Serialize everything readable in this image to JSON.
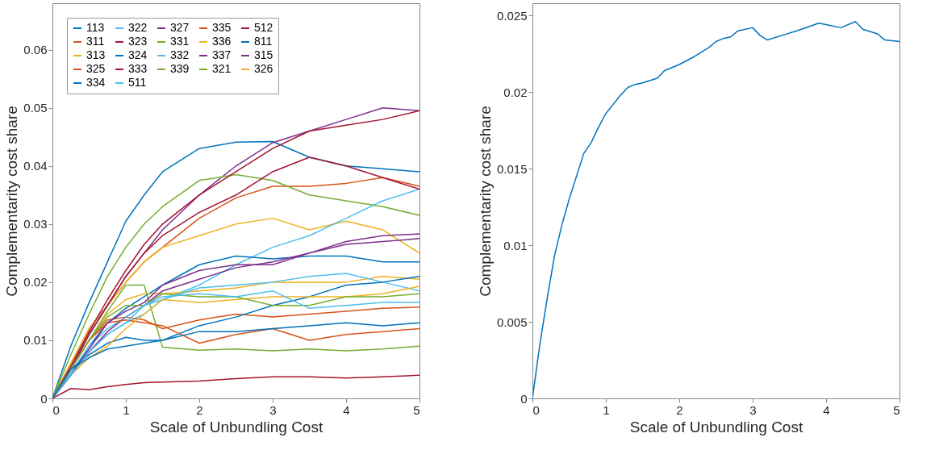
{
  "chart_data": [
    {
      "type": "line",
      "xlabel": "Scale of Unbundling Cost",
      "ylabel": "Complementarity cost share",
      "xlim": [
        0,
        5
      ],
      "xticks": [
        0,
        1,
        2,
        3,
        4,
        5
      ],
      "ylim": [
        0,
        0.068
      ],
      "yticks": [
        0,
        0.01,
        0.02,
        0.03,
        0.04,
        0.05,
        0.06
      ],
      "grid": false,
      "legend": "top left",
      "line_style": "solid",
      "marker": "none",
      "x": [
        0,
        0.25,
        0.5,
        0.75,
        1,
        1.25,
        1.5,
        2,
        2.5,
        3,
        3.5,
        4,
        4.5,
        5
      ],
      "series": [
        {
          "name": "113",
          "color": "#0072bd",
          "values": [
            0,
            0.009,
            0.0165,
            0.0235,
            0.0305,
            0.035,
            0.039,
            0.043,
            0.0441,
            0.0442,
            0.0415,
            0.04,
            0.0395,
            0.039
          ]
        },
        {
          "name": "311",
          "color": "#d95319",
          "values": [
            0,
            0.006,
            0.012,
            0.016,
            0.02,
            0.0235,
            0.026,
            0.031,
            0.0345,
            0.0365,
            0.0365,
            0.037,
            0.038,
            0.0365
          ]
        },
        {
          "name": "313",
          "color": "#edb120",
          "values": [
            0,
            0.006,
            0.012,
            0.016,
            0.02,
            0.0235,
            0.026,
            0.028,
            0.03,
            0.031,
            0.029,
            0.0305,
            0.029,
            0.025
          ]
        },
        {
          "name": "315",
          "color": "#7e2f8e",
          "values": [
            0,
            0.005,
            0.011,
            0.016,
            0.021,
            0.025,
            0.029,
            0.035,
            0.04,
            0.044,
            0.046,
            0.048,
            0.05,
            0.0495
          ]
        },
        {
          "name": "321",
          "color": "#77ac30",
          "values": [
            0,
            0.0075,
            0.0145,
            0.021,
            0.026,
            0.03,
            0.033,
            0.0375,
            0.0385,
            0.0375,
            0.035,
            0.034,
            0.033,
            0.0315
          ]
        },
        {
          "name": "322",
          "color": "#4dbeee",
          "values": [
            0,
            0.004,
            0.008,
            0.011,
            0.013,
            0.0145,
            0.017,
            0.0195,
            0.023,
            0.026,
            0.028,
            0.031,
            0.034,
            0.036
          ]
        },
        {
          "name": "323",
          "color": "#a2142f",
          "values": [
            0,
            0.0055,
            0.0115,
            0.017,
            0.022,
            0.0265,
            0.03,
            0.035,
            0.039,
            0.043,
            0.046,
            0.047,
            0.048,
            0.0495
          ]
        },
        {
          "name": "324",
          "color": "#0072bd",
          "values": [
            0,
            0.004,
            0.009,
            0.013,
            0.0155,
            0.0175,
            0.0195,
            0.023,
            0.0245,
            0.024,
            0.0245,
            0.0245,
            0.0235,
            0.0235
          ]
        },
        {
          "name": "325",
          "color": "#d95319",
          "values": [
            0,
            0.005,
            0.01,
            0.0135,
            0.014,
            0.0135,
            0.012,
            0.0135,
            0.0145,
            0.014,
            0.0145,
            0.015,
            0.0155,
            0.0157
          ]
        },
        {
          "name": "326",
          "color": "#edb120",
          "values": [
            0,
            0.005,
            0.01,
            0.0145,
            0.017,
            0.018,
            0.018,
            0.0185,
            0.019,
            0.02,
            0.02,
            0.02,
            0.021,
            0.0205
          ]
        },
        {
          "name": "327",
          "color": "#7e2f8e",
          "values": [
            0,
            0.004,
            0.008,
            0.0115,
            0.014,
            0.016,
            0.0185,
            0.0205,
            0.0225,
            0.0235,
            0.025,
            0.027,
            0.028,
            0.0283
          ]
        },
        {
          "name": "331",
          "color": "#77ac30",
          "values": [
            0,
            0.005,
            0.01,
            0.015,
            0.0195,
            0.0195,
            0.0088,
            0.0083,
            0.0085,
            0.0082,
            0.0085,
            0.0082,
            0.0085,
            0.009
          ]
        },
        {
          "name": "332",
          "color": "#4dbeee",
          "values": [
            0,
            0.0045,
            0.009,
            0.012,
            0.014,
            0.016,
            0.017,
            0.019,
            0.0195,
            0.02,
            0.021,
            0.0215,
            0.02,
            0.0185
          ]
        },
        {
          "name": "333",
          "color": "#a2142f",
          "values": [
            0,
            0.005,
            0.011,
            0.016,
            0.021,
            0.025,
            0.028,
            0.032,
            0.035,
            0.039,
            0.0415,
            0.04,
            0.038,
            0.036
          ]
        },
        {
          "name": "334",
          "color": "#0072bd",
          "values": [
            0,
            0.005,
            0.0075,
            0.0095,
            0.0105,
            0.01,
            0.01,
            0.0125,
            0.014,
            0.016,
            0.0175,
            0.0195,
            0.02,
            0.021
          ]
        },
        {
          "name": "335",
          "color": "#d95319",
          "values": [
            0,
            0.005,
            0.01,
            0.013,
            0.0135,
            0.013,
            0.0125,
            0.0095,
            0.011,
            0.012,
            0.01,
            0.011,
            0.0115,
            0.012
          ]
        },
        {
          "name": "336",
          "color": "#edb120",
          "values": [
            0,
            0.004,
            0.007,
            0.009,
            0.012,
            0.0145,
            0.017,
            0.0165,
            0.017,
            0.0175,
            0.0175,
            0.0175,
            0.018,
            0.0193
          ]
        },
        {
          "name": "337",
          "color": "#7e2f8e",
          "values": [
            0,
            0.004,
            0.0085,
            0.013,
            0.015,
            0.0165,
            0.0195,
            0.022,
            0.023,
            0.023,
            0.025,
            0.0265,
            0.027,
            0.0275
          ]
        },
        {
          "name": "339",
          "color": "#77ac30",
          "values": [
            0,
            0.005,
            0.01,
            0.014,
            0.016,
            0.016,
            0.018,
            0.0175,
            0.0175,
            0.016,
            0.016,
            0.0175,
            0.0175,
            0.018
          ]
        },
        {
          "name": "511",
          "color": "#4dbeee",
          "values": [
            0,
            0.004,
            0.008,
            0.011,
            0.013,
            0.016,
            0.0175,
            0.018,
            0.0175,
            0.0185,
            0.0155,
            0.016,
            0.0165,
            0.0165
          ]
        },
        {
          "name": "512",
          "color": "#a2142f",
          "values": [
            0,
            0.0017,
            0.0015,
            0.002,
            0.0024,
            0.0027,
            0.0028,
            0.003,
            0.0034,
            0.0037,
            0.0037,
            0.0035,
            0.0037,
            0.004
          ]
        },
        {
          "name": "811",
          "color": "#0072bd",
          "values": [
            0,
            0.005,
            0.007,
            0.0085,
            0.009,
            0.0095,
            0.01,
            0.0115,
            0.0115,
            0.012,
            0.0125,
            0.013,
            0.0125,
            0.013
          ]
        }
      ]
    },
    {
      "type": "line",
      "xlabel": "Scale of Unbundling Cost",
      "ylabel": "Complementarity cost share",
      "xlim": [
        0,
        5
      ],
      "xticks": [
        0,
        1,
        2,
        3,
        4,
        5
      ],
      "ylim": [
        0,
        0.0258
      ],
      "yticks": [
        0,
        0.005,
        0.01,
        0.015,
        0.02,
        0.025
      ],
      "grid": false,
      "line_style": "solid",
      "marker": "none",
      "x": [
        0,
        0.1,
        0.2,
        0.3,
        0.4,
        0.5,
        0.6,
        0.7,
        0.8,
        0.9,
        1.0,
        1.1,
        1.2,
        1.3,
        1.4,
        1.5,
        1.7,
        1.8,
        2,
        2.2,
        2.4,
        2.5,
        2.6,
        2.7,
        2.8,
        3.0,
        3.1,
        3.2,
        3.4,
        3.6,
        3.9,
        4.0,
        4.2,
        4.4,
        4.5,
        4.7,
        4.8,
        5
      ],
      "series": [
        {
          "color": "#0072bd",
          "values": [
            0,
            0.0035,
            0.0065,
            0.0093,
            0.0113,
            0.013,
            0.0145,
            0.016,
            0.0167,
            0.0177,
            0.0186,
            0.0192,
            0.0198,
            0.0203,
            0.0205,
            0.0206,
            0.0209,
            0.0214,
            0.0218,
            0.0223,
            0.0229,
            0.0233,
            0.0235,
            0.0236,
            0.024,
            0.0242,
            0.0237,
            0.0234,
            0.0237,
            0.024,
            0.0245,
            0.0244,
            0.0242,
            0.0246,
            0.0241,
            0.0238,
            0.0234,
            0.0233
          ]
        }
      ]
    }
  ]
}
